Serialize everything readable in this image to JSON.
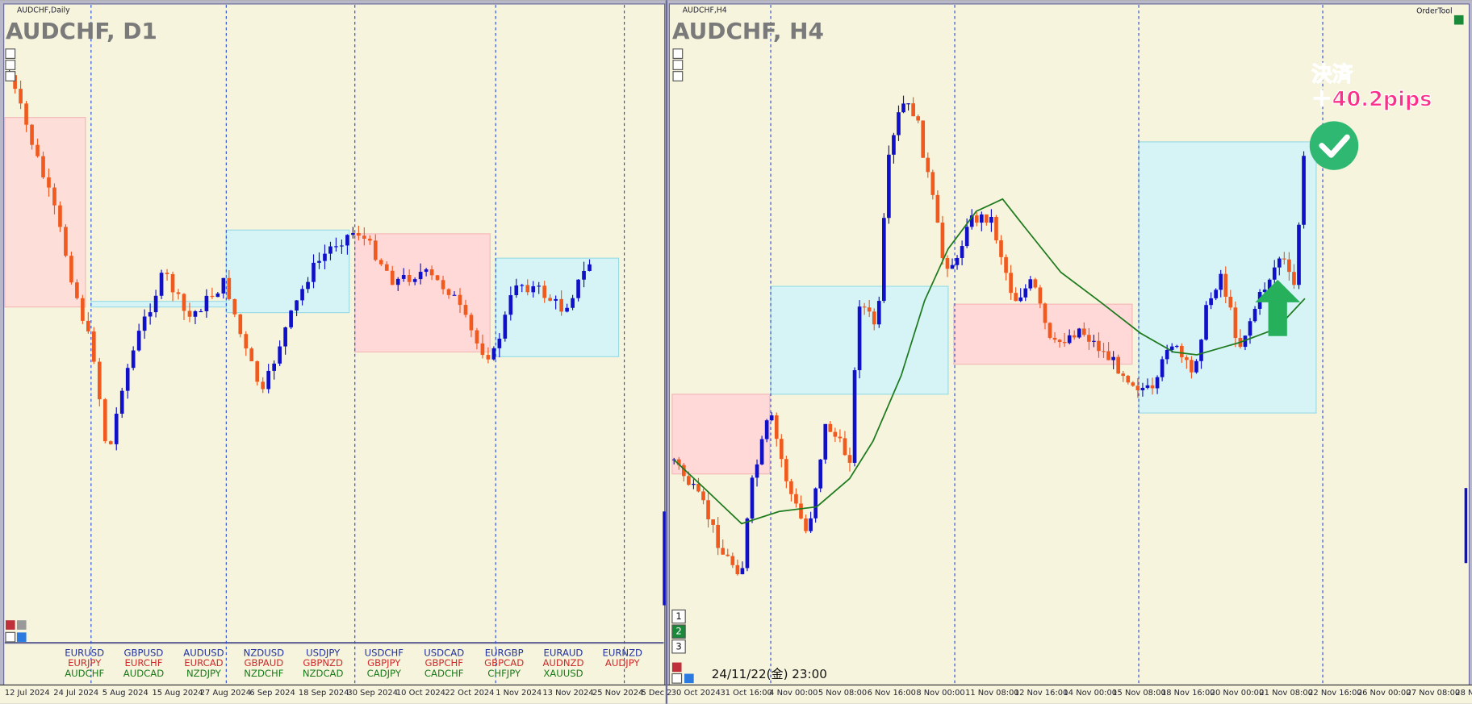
{
  "left_chart": {
    "window_title": "AUDCHF,Daily",
    "symbol_label": "AUDCHF, D1",
    "x_labels": [
      "12 Jul 2024",
      "24 Jul 2024",
      "5 Aug 2024",
      "15 Aug 2024",
      "27 Aug 2024",
      "6 Sep 2024",
      "18 Sep 2024",
      "30 Sep 2024",
      "10 Oct 2024",
      "22 Oct 2024",
      "1 Nov 2024",
      "13 Nov 2024",
      "25 Nov 2024",
      "5 Dec 2"
    ],
    "pairs": [
      [
        "EURUSD",
        "EURJPY",
        "AUDCHF"
      ],
      [
        "GBPUSD",
        "EURCHF",
        "AUDCAD"
      ],
      [
        "AUDUSD",
        "EURCAD",
        "NZDJPY"
      ],
      [
        "NZDUSD",
        "GBPAUD",
        "NZDCHF"
      ],
      [
        "USDJPY",
        "GBPNZD",
        "NZDCAD"
      ],
      [
        "USDCHF",
        "GBPJPY",
        "CADJPY"
      ],
      [
        "USDCAD",
        "GBPCHF",
        "CADCHF"
      ],
      [
        "EURGBP",
        "GBPCAD",
        "CHFJPY"
      ],
      [
        "EURAUD",
        "AUDNZD",
        "XAUUSD"
      ],
      [
        "EURNZD",
        "AUDJPY"
      ]
    ]
  },
  "right_chart": {
    "window_title": "AUDCHF,H4",
    "symbol_label": "AUDCHF, H4",
    "tool_label": "OrderTool",
    "x_labels": [
      "30 Oct 2024",
      "31 Oct 16:00",
      "4 Nov 00:00",
      "5 Nov 08:00",
      "6 Nov 16:00",
      "8 Nov 00:00",
      "11 Nov 08:00",
      "12 Nov 16:00",
      "14 Nov 00:00",
      "15 Nov 08:00",
      "18 Nov 16:00",
      "20 Nov 00:00",
      "21 Nov 08:00",
      "22 Nov 16:00",
      "26 Nov 00:00",
      "27 Nov 08:00",
      "28 N"
    ],
    "annotation": {
      "line1": "決済",
      "line2": "＋40.2pips"
    },
    "timestamp": "24/11/22(金) 23:00",
    "tabs": [
      "1",
      "2",
      "3"
    ]
  }
}
